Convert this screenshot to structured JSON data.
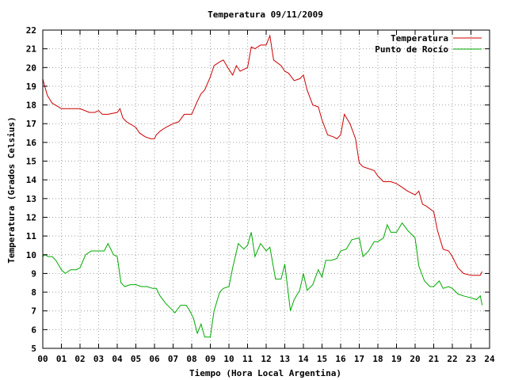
{
  "chart_data": {
    "type": "line",
    "title": "Temperatura 09/11/2009",
    "xlabel": "Tiempo (Hora Local Argentina)",
    "ylabel": "Temperatura (Grados Celsius)",
    "xlim": [
      0,
      24
    ],
    "ylim": [
      5,
      22
    ],
    "x_ticks": [
      "00",
      "01",
      "02",
      "03",
      "04",
      "05",
      "06",
      "07",
      "08",
      "09",
      "10",
      "11",
      "12",
      "13",
      "14",
      "15",
      "16",
      "17",
      "18",
      "19",
      "20",
      "21",
      "22",
      "23",
      "24"
    ],
    "y_ticks": [
      "5",
      "6",
      "7",
      "8",
      "9",
      "10",
      "11",
      "12",
      "13",
      "14",
      "15",
      "16",
      "17",
      "18",
      "19",
      "20",
      "21",
      "22"
    ],
    "grid": true,
    "legend_position": "top-right",
    "series": [
      {
        "name": "Temperatura",
        "color": "#cc0000",
        "x": [
          0.0,
          0.1,
          0.25,
          0.5,
          1.0,
          1.5,
          2.0,
          2.5,
          2.8,
          3.0,
          3.2,
          3.5,
          4.0,
          4.15,
          4.3,
          4.5,
          5.0,
          5.2,
          5.5,
          5.8,
          6.0,
          6.1,
          6.3,
          6.6,
          7.0,
          7.3,
          7.6,
          8.0,
          8.3,
          8.5,
          8.7,
          9.0,
          9.2,
          9.5,
          9.7,
          10.0,
          10.2,
          10.4,
          10.6,
          11.0,
          11.2,
          11.4,
          11.7,
          12.0,
          12.2,
          12.4,
          12.8,
          13.0,
          13.2,
          13.5,
          13.8,
          14.0,
          14.2,
          14.5,
          14.8,
          15.0,
          15.3,
          15.6,
          15.8,
          16.0,
          16.2,
          16.5,
          16.8,
          17.0,
          17.2,
          17.5,
          17.8,
          18.0,
          18.3,
          18.7,
          19.0,
          19.3,
          19.6,
          20.0,
          20.2,
          20.4,
          20.6,
          21.0,
          21.2,
          21.5,
          21.8,
          22.0,
          22.3,
          22.6,
          23.0,
          23.3,
          23.5,
          23.6
        ],
        "y": [
          19.4,
          19.0,
          18.5,
          18.1,
          17.8,
          17.8,
          17.8,
          17.6,
          17.6,
          17.7,
          17.5,
          17.5,
          17.6,
          17.8,
          17.3,
          17.1,
          16.8,
          16.5,
          16.3,
          16.2,
          16.2,
          16.4,
          16.6,
          16.8,
          17.0,
          17.1,
          17.5,
          17.5,
          18.2,
          18.6,
          18.8,
          19.5,
          20.1,
          20.3,
          20.4,
          19.9,
          19.6,
          20.1,
          19.8,
          20.0,
          21.1,
          21.0,
          21.2,
          21.2,
          21.7,
          20.4,
          20.1,
          19.8,
          19.7,
          19.3,
          19.4,
          19.6,
          18.8,
          18.0,
          17.9,
          17.2,
          16.4,
          16.3,
          16.2,
          16.4,
          17.5,
          17.0,
          16.2,
          14.9,
          14.7,
          14.6,
          14.5,
          14.2,
          13.9,
          13.9,
          13.8,
          13.6,
          13.4,
          13.2,
          13.4,
          12.7,
          12.6,
          12.3,
          11.3,
          10.3,
          10.2,
          9.9,
          9.3,
          9.0,
          8.9,
          8.9,
          8.9,
          9.1
        ]
      },
      {
        "name": "Punto de Rocío",
        "color": "#00aa00",
        "x": [
          0.0,
          0.1,
          0.3,
          0.5,
          0.7,
          1.0,
          1.2,
          1.5,
          1.8,
          2.0,
          2.3,
          2.6,
          3.0,
          3.3,
          3.5,
          3.8,
          4.0,
          4.2,
          4.4,
          4.7,
          5.0,
          5.3,
          5.6,
          5.9,
          6.1,
          6.3,
          6.6,
          6.9,
          7.1,
          7.4,
          7.7,
          7.9,
          8.1,
          8.3,
          8.5,
          8.7,
          9.0,
          9.2,
          9.5,
          9.7,
          10.0,
          10.2,
          10.5,
          10.8,
          11.0,
          11.2,
          11.4,
          11.7,
          12.0,
          12.2,
          12.5,
          12.8,
          13.0,
          13.3,
          13.5,
          13.8,
          14.0,
          14.2,
          14.5,
          14.8,
          15.0,
          15.2,
          15.5,
          15.8,
          16.0,
          16.3,
          16.6,
          17.0,
          17.2,
          17.5,
          17.8,
          18.0,
          18.3,
          18.5,
          18.7,
          19.0,
          19.3,
          19.6,
          20.0,
          20.2,
          20.5,
          20.8,
          21.0,
          21.3,
          21.5,
          21.8,
          22.0,
          22.3,
          22.6,
          23.0,
          23.3,
          23.5,
          23.6
        ],
        "y": [
          9.9,
          10.0,
          9.9,
          9.9,
          9.7,
          9.2,
          9.0,
          9.2,
          9.2,
          9.3,
          10.0,
          10.2,
          10.2,
          10.2,
          10.6,
          10.0,
          9.9,
          8.5,
          8.3,
          8.4,
          8.4,
          8.3,
          8.3,
          8.2,
          8.2,
          7.8,
          7.4,
          7.1,
          6.9,
          7.3,
          7.3,
          7.0,
          6.6,
          5.8,
          6.3,
          5.6,
          5.6,
          7.0,
          8.0,
          8.2,
          8.3,
          9.3,
          10.6,
          10.3,
          10.5,
          11.2,
          9.9,
          10.6,
          10.2,
          10.4,
          8.7,
          8.7,
          9.5,
          7.0,
          7.6,
          8.1,
          9.0,
          8.1,
          8.4,
          9.2,
          8.8,
          9.7,
          9.7,
          9.8,
          10.2,
          10.3,
          10.8,
          10.9,
          9.9,
          10.2,
          10.7,
          10.7,
          10.9,
          11.6,
          11.2,
          11.2,
          11.7,
          11.3,
          10.9,
          9.4,
          8.6,
          8.3,
          8.3,
          8.6,
          8.2,
          8.3,
          8.2,
          7.9,
          7.8,
          7.7,
          7.6,
          7.8,
          7.3
        ]
      }
    ]
  }
}
